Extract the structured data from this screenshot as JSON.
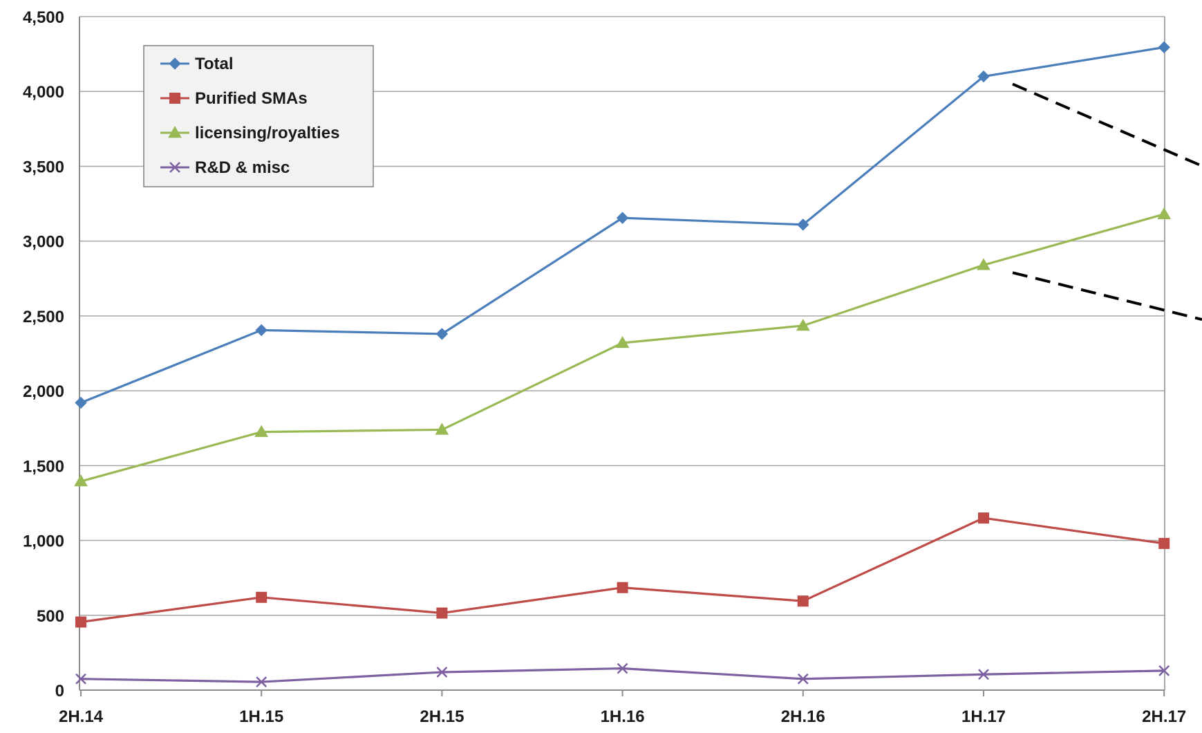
{
  "chart_data": {
    "type": "line",
    "title": "",
    "xlabel": "",
    "ylabel": "",
    "categories": [
      "2H.14",
      "1H.15",
      "2H.15",
      "1H.16",
      "2H.16",
      "1H.17",
      "2H.17"
    ],
    "ylim": [
      0,
      4500
    ],
    "yticks": [
      0,
      500,
      1000,
      1500,
      2000,
      2500,
      3000,
      3500,
      4000,
      4500
    ],
    "ytick_labels": [
      "0",
      "500",
      "1,000",
      "1,500",
      "2,000",
      "2,500",
      "3,000",
      "3,500",
      "4,000",
      "4,500"
    ],
    "grid": "horizontal",
    "legend_position": "top-left",
    "series": [
      {
        "name": "Total",
        "color": "#4a7ebb",
        "marker": "diamond",
        "values": [
          1920,
          2405,
          2380,
          3155,
          3110,
          4100,
          4295
        ]
      },
      {
        "name": "Purified SMAs",
        "color": "#be4b48",
        "marker": "square",
        "values": [
          455,
          620,
          515,
          685,
          595,
          1150,
          980
        ]
      },
      {
        "name": "licensing/royalties",
        "color": "#98b954",
        "marker": "triangle",
        "values": [
          1395,
          1725,
          1740,
          2320,
          2435,
          2840,
          3180
        ]
      },
      {
        "name": "R&D & misc",
        "color": "#7d60a0",
        "marker": "x",
        "values": [
          75,
          55,
          120,
          145,
          75,
          105,
          130
        ]
      }
    ],
    "annotations": [
      {
        "type": "dashed-line",
        "from_series": "Total",
        "from_category": "1H.17",
        "direction": "right",
        "color": "#000000"
      },
      {
        "type": "dashed-line",
        "from_series": "licensing/royalties",
        "from_category": "1H.17",
        "direction": "right",
        "color": "#000000"
      }
    ]
  }
}
